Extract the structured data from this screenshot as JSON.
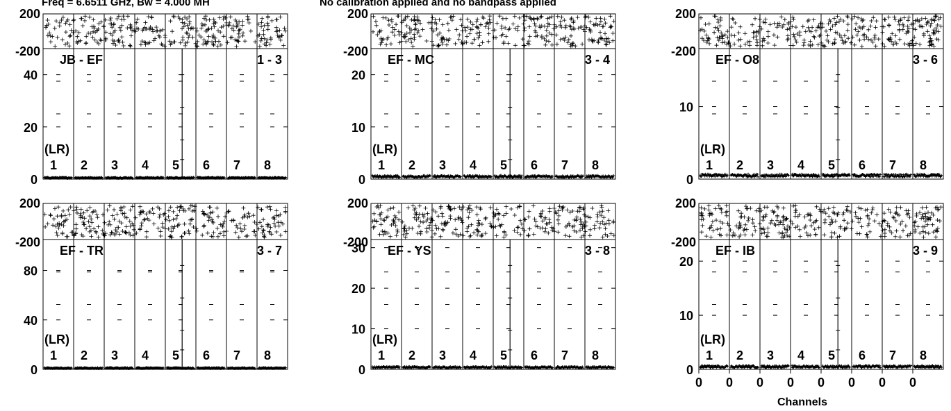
{
  "header": {
    "freq_text": "Freq = 6.6511 GHz, Bw = 4.000 MH",
    "cal_text": "No calibration applied and no bandpass applied"
  },
  "chart_data": {
    "type": "line",
    "xlabel": "Channels",
    "x_tick_labels": [
      "0",
      "0",
      "0",
      "0",
      "0",
      "0",
      "0",
      "0"
    ],
    "phase_ylim": [
      -200,
      200
    ],
    "phase_ticks": [
      "200",
      "-200"
    ],
    "polarization_label": "(LR)",
    "if_labels": [
      "1",
      "2",
      "3",
      "4",
      "5",
      "6",
      "7",
      "8"
    ],
    "panels": [
      {
        "baseline": "JB - EF",
        "antennas": "1 - 3",
        "ylim": [
          0,
          50
        ],
        "y_ticks": [
          0,
          20,
          40
        ],
        "peak_if": 5,
        "peak_amp": 50,
        "baseline_amp": 0.5
      },
      {
        "baseline": "EF - MC",
        "antennas": "3 - 4",
        "ylim": [
          0,
          25
        ],
        "y_ticks": [
          0,
          10,
          20
        ],
        "peak_if": 5,
        "peak_amp": 25,
        "baseline_amp": 0.5
      },
      {
        "baseline": "EF - O8",
        "antennas": "3 - 6",
        "ylim": [
          0,
          18
        ],
        "y_ticks": [
          0,
          10
        ],
        "peak_if": 5,
        "peak_amp": 18,
        "baseline_amp": 0.5
      },
      {
        "baseline": "EF - TR",
        "antennas": "3 - 7",
        "ylim": [
          0,
          105
        ],
        "y_ticks": [
          0,
          40,
          80
        ],
        "peak_if": 5,
        "peak_amp": 105,
        "baseline_amp": 1
      },
      {
        "baseline": "EF - YS",
        "antennas": "3 - 8",
        "ylim": [
          0,
          32
        ],
        "y_ticks": [
          0,
          10,
          20,
          30
        ],
        "peak_if": 5,
        "peak_amp": 32,
        "baseline_amp": 0.5
      },
      {
        "baseline": "EF - IB",
        "antennas": "3 - 9",
        "ylim": [
          0,
          24
        ],
        "y_ticks": [
          0,
          10,
          20
        ],
        "peak_if": 5,
        "peak_amp": 24,
        "baseline_amp": 0.5
      }
    ]
  }
}
